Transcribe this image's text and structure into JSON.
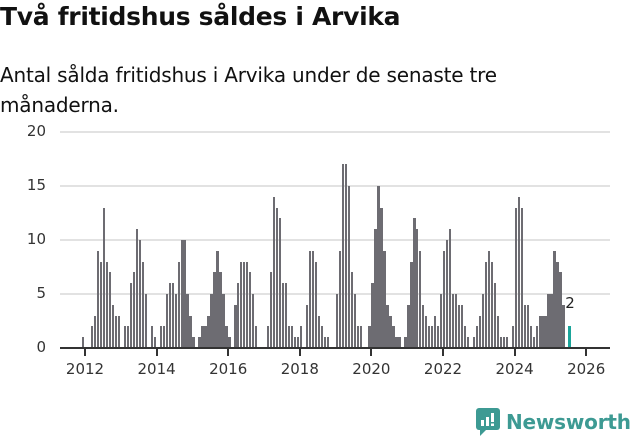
{
  "header": {
    "title": "Två fritidshus såldes i Arvika",
    "subtitle": "Antal sålda fritidshus i Arvika under de senaste tre månaderna."
  },
  "branding": {
    "logo_text": "Newsworthy",
    "color": "#3d9a93"
  },
  "chart_data": {
    "type": "bar",
    "title": "Två fritidshus såldes i Arvika",
    "subtitle": "Antal sålda fritidshus i Arvika under de senaste tre månaderna.",
    "xlabel": "",
    "ylabel": "",
    "ylim": [
      0,
      20
    ],
    "yticks": [
      0,
      5,
      10,
      15,
      20
    ],
    "xticks": [
      "2012",
      "2014",
      "2016",
      "2018",
      "2020",
      "2022",
      "2024",
      "2026"
    ],
    "grid": true,
    "legend": null,
    "bar_color": "#6d6c72",
    "highlight_color": "#1aa59a",
    "annotation": {
      "label": "2",
      "target": "last bar"
    },
    "start_month": "2011-12",
    "values": [
      1,
      0,
      0,
      2,
      3,
      9,
      8,
      13,
      8,
      7,
      4,
      3,
      3,
      0,
      2,
      2,
      6,
      7,
      11,
      10,
      8,
      5,
      0,
      2,
      1,
      0,
      2,
      2,
      5,
      6,
      6,
      5,
      8,
      10,
      10,
      5,
      3,
      1,
      0,
      1,
      2,
      2,
      3,
      5,
      7,
      9,
      7,
      5,
      2,
      1,
      0,
      4,
      6,
      8,
      8,
      8,
      7,
      5,
      2,
      0,
      0,
      0,
      2,
      7,
      14,
      13,
      12,
      6,
      6,
      2,
      2,
      1,
      1,
      2,
      0,
      4,
      9,
      9,
      8,
      3,
      2,
      1,
      1,
      0,
      0,
      5,
      9,
      17,
      17,
      15,
      7,
      5,
      2,
      2,
      0,
      0,
      2,
      6,
      11,
      15,
      13,
      9,
      4,
      3,
      2,
      1,
      1,
      0,
      1,
      4,
      8,
      12,
      11,
      9,
      4,
      3,
      2,
      2,
      3,
      2,
      5,
      9,
      10,
      11,
      5,
      5,
      4,
      4,
      2,
      1,
      0,
      1,
      2,
      3,
      5,
      8,
      9,
      8,
      6,
      3,
      1,
      1,
      1,
      0,
      2,
      13,
      14,
      13,
      4,
      4,
      2,
      1,
      2,
      3,
      3,
      3,
      5,
      5,
      9,
      8,
      7,
      4,
      0,
      2
    ]
  },
  "axis": {
    "y_labels": [
      "20",
      "15",
      "10",
      "5",
      "0"
    ],
    "x_labels": [
      "2012",
      "2014",
      "2016",
      "2018",
      "2020",
      "2022",
      "2024",
      "2026"
    ]
  }
}
